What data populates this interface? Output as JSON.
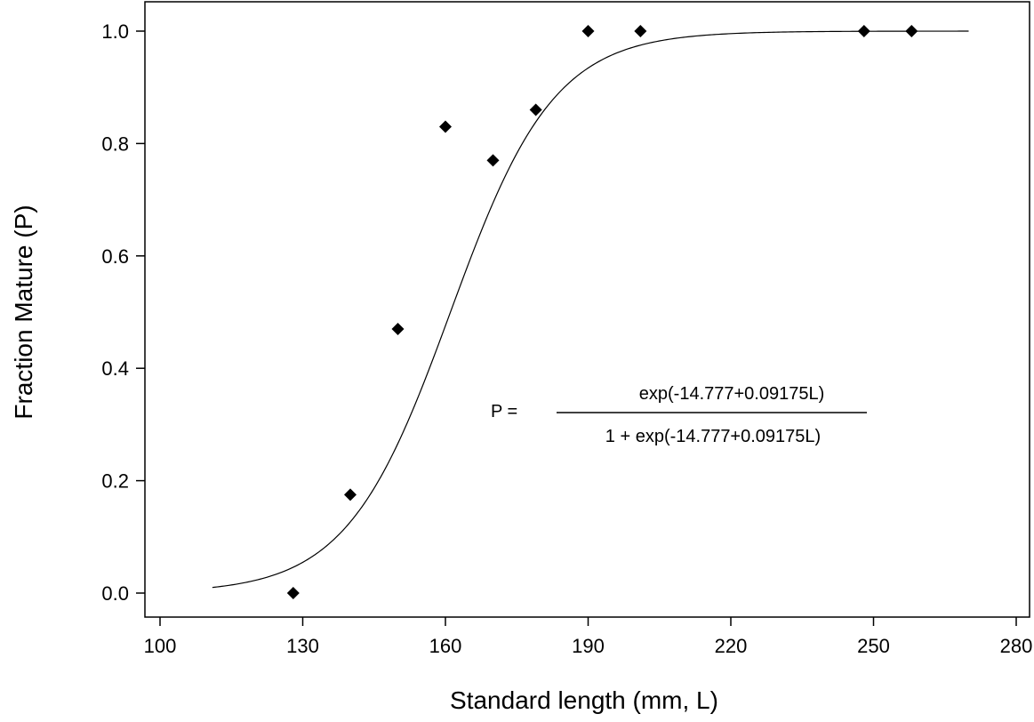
{
  "chart_data": {
    "type": "scatter",
    "xlabel": "Standard length (mm, L)",
    "ylabel": "Fraction Mature (P)",
    "xlim": [
      100,
      280
    ],
    "ylim": [
      0.0,
      1.0
    ],
    "x_ticks": [
      "100",
      "130",
      "160",
      "190",
      "220",
      "250",
      "280"
    ],
    "y_ticks": [
      "0.0",
      "0.2",
      "0.4",
      "0.6",
      "0.8",
      "1.0"
    ],
    "grid": false,
    "series": [
      {
        "type": "scatter",
        "marker": "diamond",
        "color": "#000000",
        "points": [
          {
            "x": 128,
            "y": 0.0
          },
          {
            "x": 140,
            "y": 0.175
          },
          {
            "x": 150,
            "y": 0.47
          },
          {
            "x": 160,
            "y": 0.83
          },
          {
            "x": 170,
            "y": 0.77
          },
          {
            "x": 179,
            "y": 0.86
          },
          {
            "x": 190,
            "y": 1.0
          },
          {
            "x": 201,
            "y": 1.0
          },
          {
            "x": 248,
            "y": 1.0
          },
          {
            "x": 258,
            "y": 1.0
          }
        ]
      },
      {
        "type": "line",
        "color": "#000000",
        "model": "logistic",
        "intercept": -14.777,
        "slope": 0.09175,
        "x_range": [
          111,
          270
        ]
      }
    ],
    "annotation": {
      "lhs": "P =",
      "numerator": "exp(-14.777+0.09175L)",
      "denominator": "1 + exp(-14.777+0.09175L)"
    }
  }
}
